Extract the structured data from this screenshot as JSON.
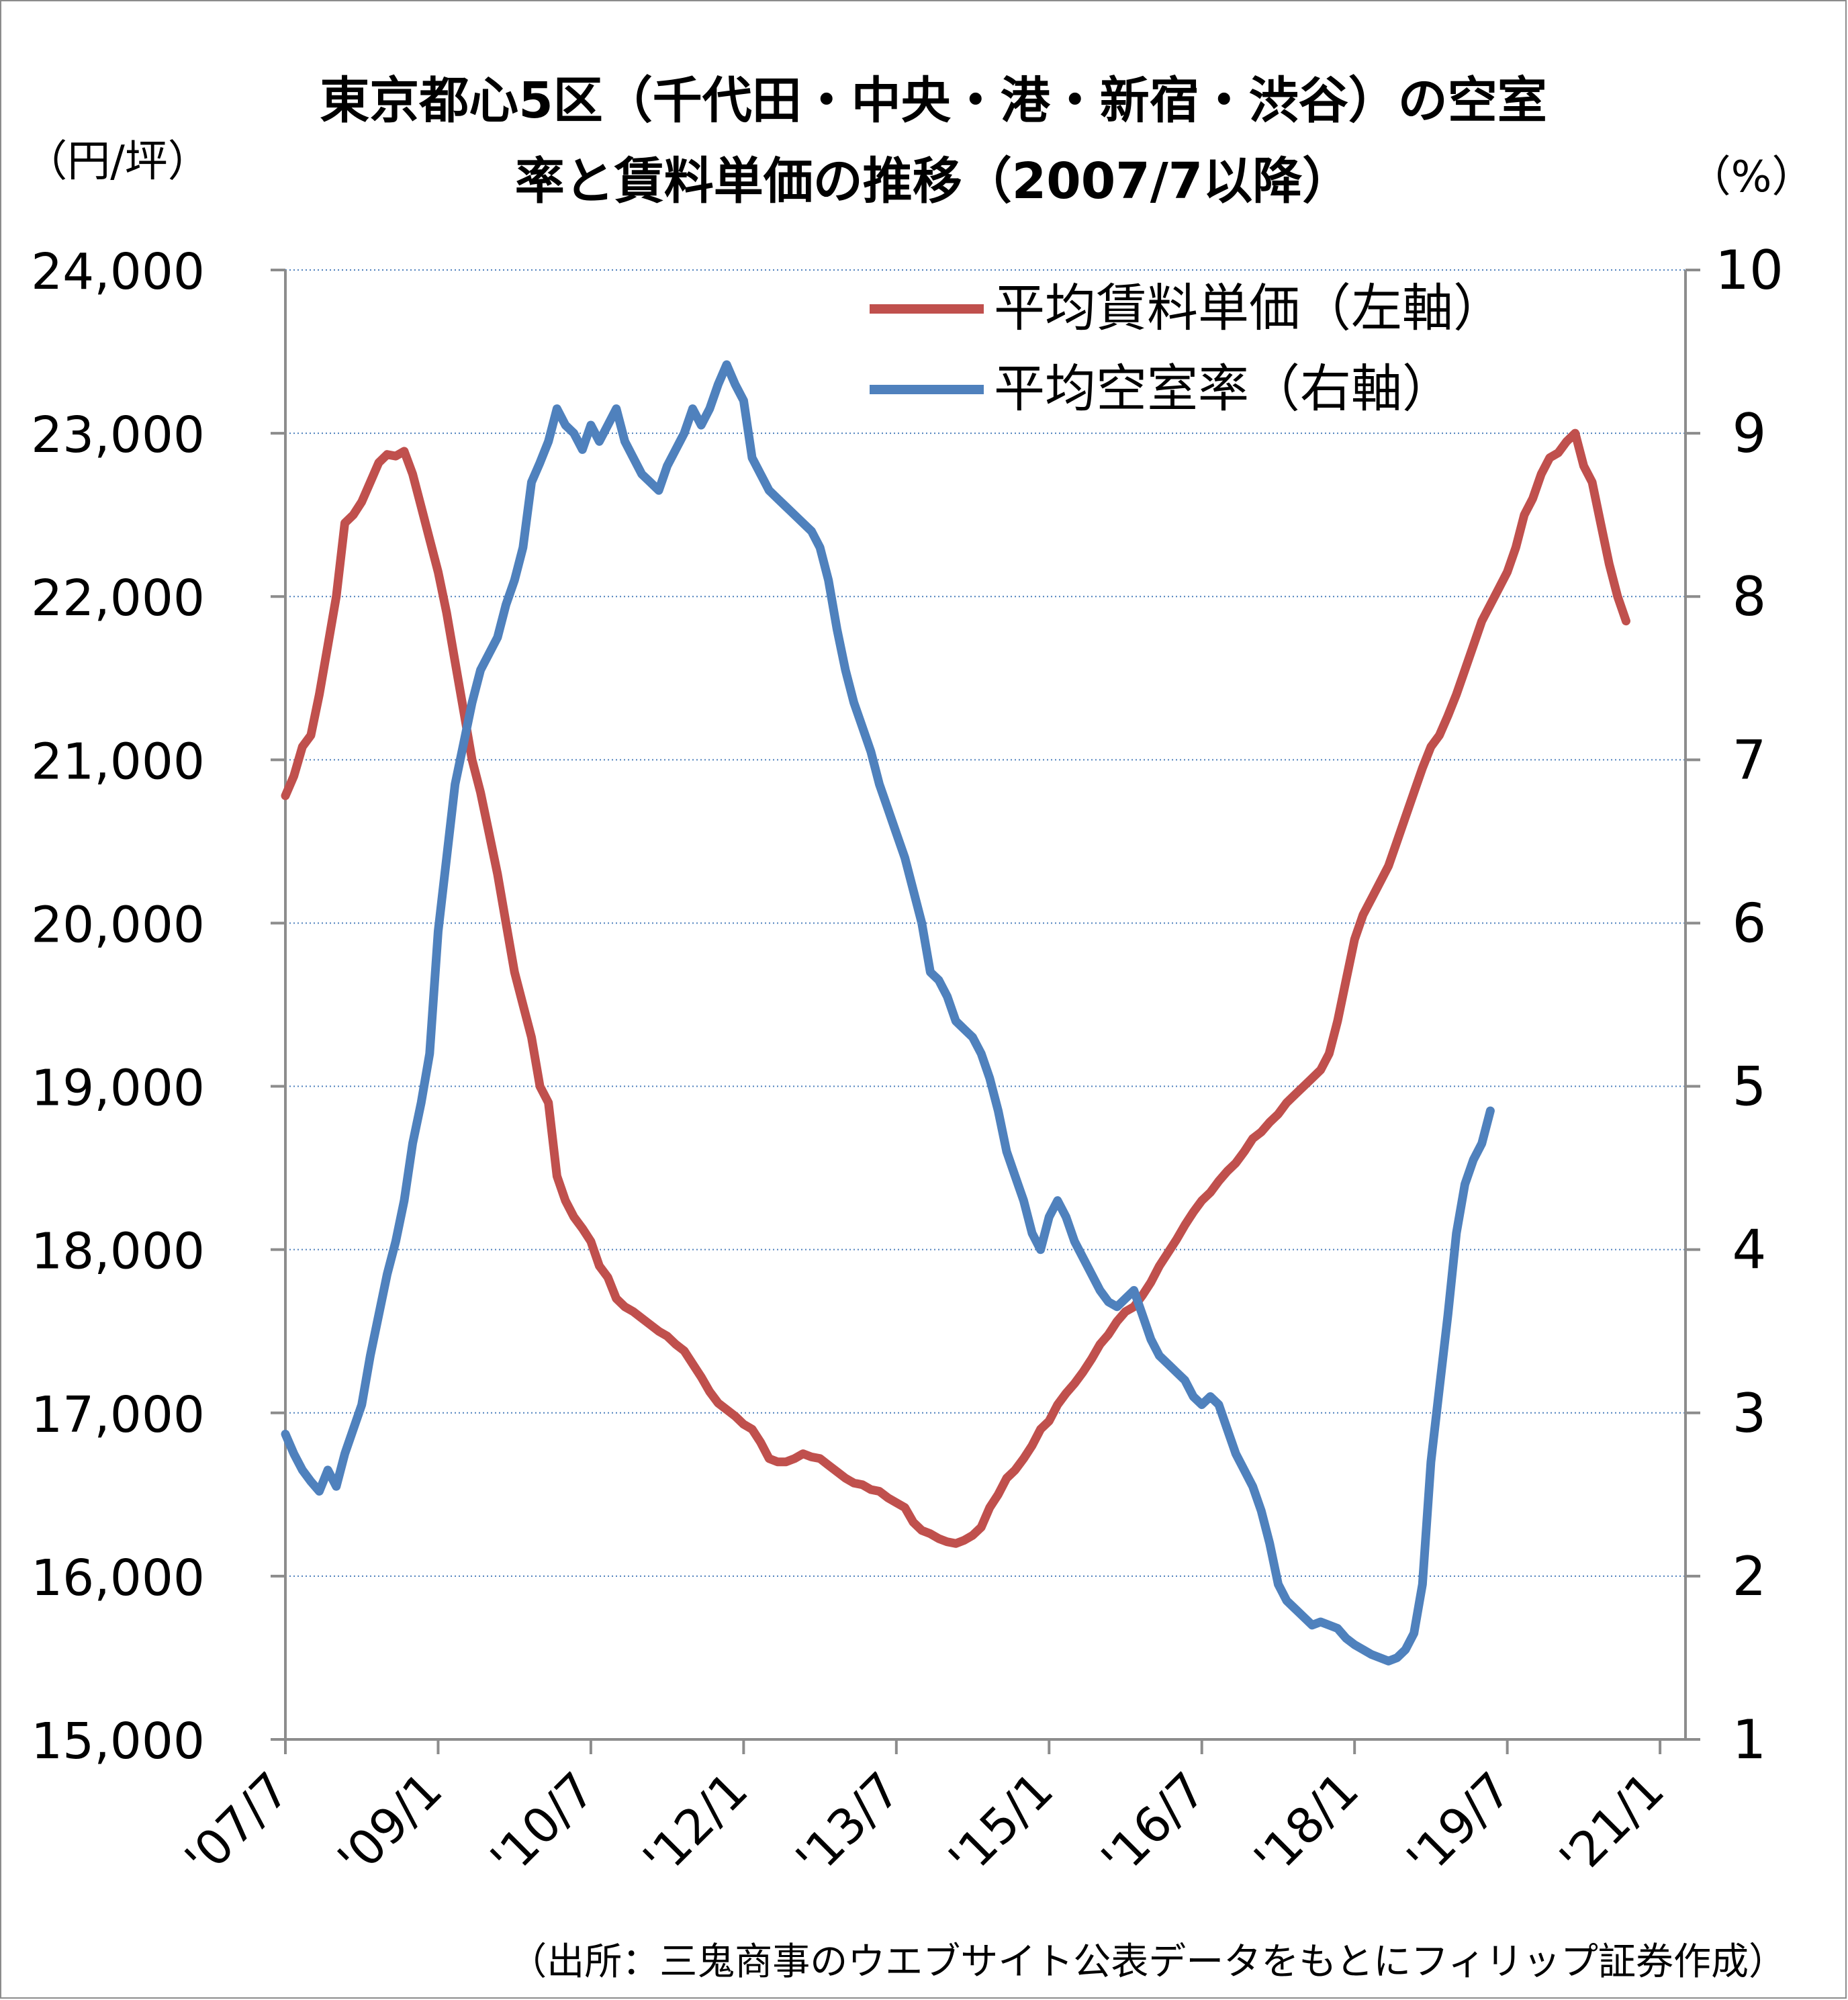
{
  "chart_data": {
    "type": "line",
    "title_line1": "東京都心5区（千代田・中央・港・新宿・渋谷）の空室",
    "title_line2": "率と賃料単価の推移（2007/7以降）",
    "y_left_unit": "（円/坪）",
    "y_right_unit": "（%）",
    "source_note": "（出所：三鬼商事のウエブサイト公表データをもとにフィリップ証券作成）",
    "ylim_left": [
      15000,
      24000
    ],
    "ylim_right": [
      1,
      10
    ],
    "y_left_ticks": [
      "15,000",
      "16,000",
      "17,000",
      "18,000",
      "19,000",
      "20,000",
      "21,000",
      "22,000",
      "23,000",
      "24,000"
    ],
    "y_right_ticks": [
      "1",
      "2",
      "3",
      "4",
      "5",
      "6",
      "7",
      "8",
      "9",
      "10"
    ],
    "x_tick_labels": [
      "'07/7",
      "'09/1",
      "'10/7",
      "'12/1",
      "'13/7",
      "'15/1",
      "'16/7",
      "'18/1",
      "'19/7",
      "'21/1"
    ],
    "x_tick_positions": [
      0,
      18,
      36,
      54,
      72,
      90,
      108,
      126,
      144,
      162
    ],
    "grid": "horizontal dotted",
    "legend_position": "top-right",
    "colors": {
      "rent": "#c0504d",
      "vacancy": "#4f81bd",
      "grid": "#4f81bd",
      "axis": "#8c8c8c"
    },
    "series": [
      {
        "name": "平均賃料単価（左軸）",
        "axis": "left",
        "anchors": [
          [
            0,
            20780
          ],
          [
            1,
            20900
          ],
          [
            2,
            21080
          ],
          [
            3,
            21150
          ],
          [
            4,
            21400
          ],
          [
            5,
            21700
          ],
          [
            6,
            22000
          ],
          [
            7,
            22450
          ],
          [
            8,
            22500
          ],
          [
            9,
            22580
          ],
          [
            10,
            22700
          ],
          [
            11,
            22820
          ],
          [
            12,
            22870
          ],
          [
            13,
            22860
          ],
          [
            14,
            22890
          ],
          [
            15,
            22750
          ],
          [
            16,
            22550
          ],
          [
            17,
            22350
          ],
          [
            18,
            22150
          ],
          [
            19,
            21900
          ],
          [
            20,
            21600
          ],
          [
            21,
            21300
          ],
          [
            22,
            21000
          ],
          [
            23,
            20800
          ],
          [
            24,
            20550
          ],
          [
            25,
            20300
          ],
          [
            26,
            20000
          ],
          [
            27,
            19700
          ],
          [
            28,
            19500
          ],
          [
            29,
            19300
          ],
          [
            30,
            19000
          ],
          [
            31,
            18900
          ],
          [
            32,
            18450
          ],
          [
            33,
            18300
          ],
          [
            34,
            18200
          ],
          [
            35,
            18130
          ],
          [
            36,
            18050
          ],
          [
            37,
            17900
          ],
          [
            38,
            17830
          ],
          [
            39,
            17700
          ],
          [
            40,
            17650
          ],
          [
            41,
            17620
          ],
          [
            42,
            17580
          ],
          [
            43,
            17540
          ],
          [
            44,
            17500
          ],
          [
            45,
            17470
          ],
          [
            46,
            17420
          ],
          [
            47,
            17380
          ],
          [
            48,
            17300
          ],
          [
            49,
            17220
          ],
          [
            50,
            17130
          ],
          [
            51,
            17060
          ],
          [
            52,
            17020
          ],
          [
            53,
            16980
          ],
          [
            54,
            16930
          ],
          [
            55,
            16900
          ],
          [
            56,
            16820
          ],
          [
            57,
            16720
          ],
          [
            58,
            16700
          ],
          [
            59,
            16700
          ],
          [
            60,
            16720
          ],
          [
            61,
            16750
          ],
          [
            62,
            16730
          ],
          [
            63,
            16720
          ],
          [
            64,
            16680
          ],
          [
            65,
            16640
          ],
          [
            66,
            16600
          ],
          [
            67,
            16570
          ],
          [
            68,
            16560
          ],
          [
            69,
            16530
          ],
          [
            70,
            16520
          ],
          [
            71,
            16480
          ],
          [
            72,
            16450
          ],
          [
            73,
            16420
          ],
          [
            74,
            16330
          ],
          [
            75,
            16280
          ],
          [
            76,
            16260
          ],
          [
            77,
            16230
          ],
          [
            78,
            16210
          ],
          [
            79,
            16200
          ],
          [
            80,
            16220
          ],
          [
            81,
            16250
          ],
          [
            82,
            16300
          ],
          [
            83,
            16420
          ],
          [
            84,
            16500
          ],
          [
            85,
            16600
          ],
          [
            86,
            16650
          ],
          [
            87,
            16720
          ],
          [
            88,
            16800
          ],
          [
            89,
            16900
          ],
          [
            90,
            16950
          ],
          [
            91,
            17050
          ],
          [
            92,
            17120
          ],
          [
            93,
            17180
          ],
          [
            94,
            17250
          ],
          [
            95,
            17330
          ],
          [
            96,
            17420
          ],
          [
            97,
            17480
          ],
          [
            98,
            17560
          ],
          [
            99,
            17620
          ],
          [
            100,
            17650
          ],
          [
            101,
            17720
          ],
          [
            102,
            17800
          ],
          [
            103,
            17900
          ],
          [
            104,
            17980
          ],
          [
            105,
            18060
          ],
          [
            106,
            18150
          ],
          [
            107,
            18230
          ],
          [
            108,
            18300
          ],
          [
            109,
            18350
          ],
          [
            110,
            18420
          ],
          [
            111,
            18480
          ],
          [
            112,
            18530
          ],
          [
            113,
            18600
          ],
          [
            114,
            18680
          ],
          [
            115,
            18720
          ],
          [
            116,
            18780
          ],
          [
            117,
            18830
          ],
          [
            118,
            18900
          ],
          [
            119,
            18950
          ],
          [
            120,
            19000
          ],
          [
            121,
            19050
          ],
          [
            122,
            19100
          ],
          [
            123,
            19200
          ],
          [
            124,
            19400
          ],
          [
            125,
            19650
          ],
          [
            126,
            19900
          ],
          [
            127,
            20050
          ],
          [
            128,
            20150
          ],
          [
            129,
            20250
          ],
          [
            130,
            20350
          ],
          [
            131,
            20500
          ],
          [
            132,
            20650
          ],
          [
            133,
            20800
          ],
          [
            134,
            20950
          ],
          [
            135,
            21080
          ],
          [
            136,
            21150
          ],
          [
            137,
            21270
          ],
          [
            138,
            21400
          ],
          [
            139,
            21550
          ],
          [
            140,
            21700
          ],
          [
            141,
            21850
          ],
          [
            142,
            21950
          ],
          [
            143,
            22050
          ],
          [
            144,
            22150
          ],
          [
            145,
            22300
          ],
          [
            146,
            22500
          ],
          [
            147,
            22600
          ],
          [
            148,
            22750
          ],
          [
            149,
            22850
          ],
          [
            150,
            22880
          ],
          [
            151,
            22950
          ],
          [
            152,
            23000
          ],
          [
            153,
            22800
          ],
          [
            154,
            22700
          ],
          [
            155,
            22450
          ],
          [
            156,
            22200
          ],
          [
            157,
            22000
          ],
          [
            158,
            21850
          ]
        ]
      },
      {
        "name": "平均空室率（右軸）",
        "axis": "right",
        "anchors": [
          [
            0,
            2.87
          ],
          [
            1,
            2.75
          ],
          [
            2,
            2.65
          ],
          [
            3,
            2.58
          ],
          [
            4,
            2.52
          ],
          [
            5,
            2.65
          ],
          [
            6,
            2.55
          ],
          [
            7,
            2.75
          ],
          [
            8,
            2.9
          ],
          [
            9,
            3.05
          ],
          [
            10,
            3.35
          ],
          [
            11,
            3.6
          ],
          [
            12,
            3.85
          ],
          [
            13,
            4.05
          ],
          [
            14,
            4.3
          ],
          [
            15,
            4.65
          ],
          [
            16,
            4.9
          ],
          [
            17,
            5.2
          ],
          [
            18,
            5.95
          ],
          [
            19,
            6.4
          ],
          [
            20,
            6.85
          ],
          [
            21,
            7.1
          ],
          [
            22,
            7.35
          ],
          [
            23,
            7.55
          ],
          [
            24,
            7.65
          ],
          [
            25,
            7.75
          ],
          [
            26,
            7.95
          ],
          [
            27,
            8.1
          ],
          [
            28,
            8.3
          ],
          [
            29,
            8.7
          ],
          [
            30,
            8.82
          ],
          [
            31,
            8.95
          ],
          [
            32,
            9.15
          ],
          [
            33,
            9.05
          ],
          [
            34,
            9.0
          ],
          [
            35,
            8.9
          ],
          [
            36,
            9.05
          ],
          [
            37,
            8.95
          ],
          [
            38,
            9.05
          ],
          [
            39,
            9.15
          ],
          [
            40,
            8.95
          ],
          [
            41,
            8.85
          ],
          [
            42,
            8.75
          ],
          [
            43,
            8.7
          ],
          [
            44,
            8.65
          ],
          [
            45,
            8.8
          ],
          [
            46,
            8.9
          ],
          [
            47,
            9.0
          ],
          [
            48,
            9.15
          ],
          [
            49,
            9.05
          ],
          [
            50,
            9.15
          ],
          [
            51,
            9.3
          ],
          [
            52,
            9.42
          ],
          [
            53,
            9.3
          ],
          [
            54,
            9.2
          ],
          [
            55,
            8.85
          ],
          [
            56,
            8.75
          ],
          [
            57,
            8.65
          ],
          [
            58,
            8.6
          ],
          [
            59,
            8.55
          ],
          [
            60,
            8.5
          ],
          [
            61,
            8.45
          ],
          [
            62,
            8.4
          ],
          [
            63,
            8.3
          ],
          [
            64,
            8.1
          ],
          [
            65,
            7.8
          ],
          [
            66,
            7.55
          ],
          [
            67,
            7.35
          ],
          [
            68,
            7.2
          ],
          [
            69,
            7.05
          ],
          [
            70,
            6.85
          ],
          [
            71,
            6.7
          ],
          [
            72,
            6.55
          ],
          [
            73,
            6.4
          ],
          [
            74,
            6.2
          ],
          [
            75,
            6.0
          ],
          [
            76,
            5.7
          ],
          [
            77,
            5.65
          ],
          [
            78,
            5.55
          ],
          [
            79,
            5.4
          ],
          [
            80,
            5.35
          ],
          [
            81,
            5.3
          ],
          [
            82,
            5.2
          ],
          [
            83,
            5.05
          ],
          [
            84,
            4.85
          ],
          [
            85,
            4.6
          ],
          [
            86,
            4.45
          ],
          [
            87,
            4.3
          ],
          [
            88,
            4.1
          ],
          [
            89,
            4.0
          ],
          [
            90,
            4.2
          ],
          [
            91,
            4.3
          ],
          [
            92,
            4.2
          ],
          [
            93,
            4.05
          ],
          [
            94,
            3.95
          ],
          [
            95,
            3.85
          ],
          [
            96,
            3.75
          ],
          [
            97,
            3.68
          ],
          [
            98,
            3.65
          ],
          [
            99,
            3.7
          ],
          [
            100,
            3.75
          ],
          [
            101,
            3.6
          ],
          [
            102,
            3.45
          ],
          [
            103,
            3.35
          ],
          [
            104,
            3.3
          ],
          [
            105,
            3.25
          ],
          [
            106,
            3.2
          ],
          [
            107,
            3.1
          ],
          [
            108,
            3.05
          ],
          [
            109,
            3.1
          ],
          [
            110,
            3.05
          ],
          [
            111,
            2.9
          ],
          [
            112,
            2.75
          ],
          [
            113,
            2.65
          ],
          [
            114,
            2.55
          ],
          [
            115,
            2.4
          ],
          [
            116,
            2.2
          ],
          [
            117,
            1.95
          ],
          [
            118,
            1.85
          ],
          [
            119,
            1.8
          ],
          [
            120,
            1.75
          ],
          [
            121,
            1.7
          ],
          [
            122,
            1.72
          ],
          [
            123,
            1.7
          ],
          [
            124,
            1.68
          ],
          [
            125,
            1.62
          ],
          [
            126,
            1.58
          ],
          [
            127,
            1.55
          ],
          [
            128,
            1.52
          ],
          [
            129,
            1.5
          ],
          [
            130,
            1.48
          ],
          [
            131,
            1.5
          ],
          [
            132,
            1.55
          ],
          [
            133,
            1.65
          ],
          [
            134,
            1.95
          ],
          [
            135,
            2.7
          ],
          [
            136,
            3.15
          ],
          [
            137,
            3.6
          ],
          [
            138,
            4.1
          ],
          [
            139,
            4.4
          ],
          [
            140,
            4.55
          ],
          [
            141,
            4.65
          ],
          [
            142,
            4.85
          ]
        ]
      }
    ]
  }
}
